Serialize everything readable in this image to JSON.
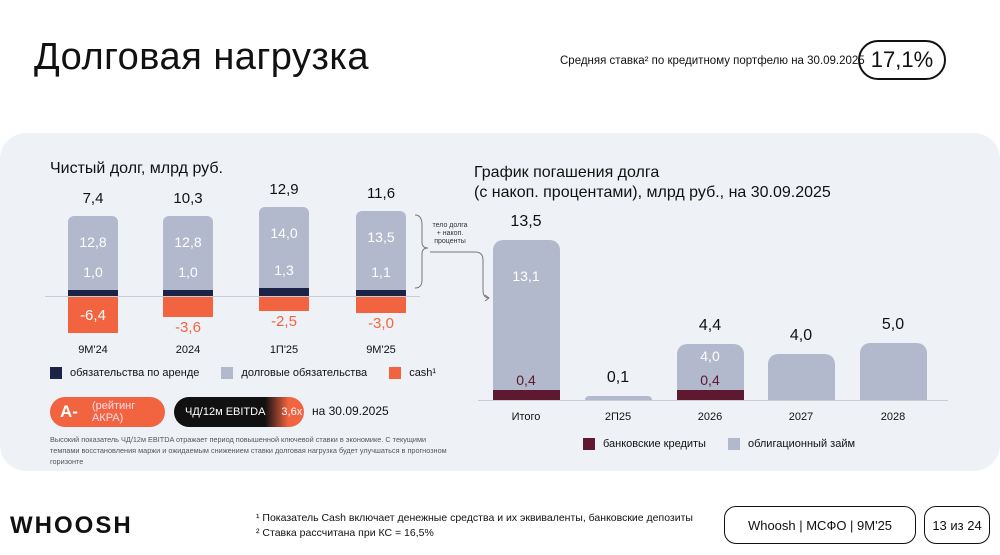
{
  "header": {
    "title": "Долговая нагрузка",
    "rate_label": "Средняя ставка² по кредитному портфелю на 30.09.2025",
    "rate_value": "17,1%"
  },
  "colors": {
    "lease": "#1b2347",
    "debt": "#b3b9cc",
    "cash": "#f26440",
    "bank": "#5e1830",
    "bonds": "#b3b9cc"
  },
  "left_chart": {
    "title": "Чистый долг, млрд руб.",
    "type": "bar",
    "categories": [
      "9М'24",
      "2024",
      "1П'25",
      "9М'25"
    ],
    "net_debt": [
      "7,4",
      "10,3",
      "12,9",
      "11,6"
    ],
    "debt": [
      12.8,
      12.8,
      14.0,
      13.5
    ],
    "debt_labels": [
      "12,8",
      "12,8",
      "14,0",
      "13,5"
    ],
    "lease": [
      1.0,
      1.0,
      1.3,
      1.1
    ],
    "lease_labels": [
      "1,0",
      "1,0",
      "1,3",
      "1,1"
    ],
    "cash": [
      -6.4,
      -3.6,
      -2.5,
      -3.0
    ],
    "cash_labels": [
      "-6,4",
      "-3,6",
      "-2,5",
      "-3,0"
    ],
    "legend": [
      "обязательства по аренде",
      "долговые обязательства",
      "cash¹"
    ],
    "annotation": "тело долга + накоп. проценты"
  },
  "badges": {
    "rating": "A-",
    "rating_label": "(рейтинг АКРА)",
    "ratio_label": "ЧД/12м EBITDA",
    "ratio_value": "3,6x",
    "date": "на 30.09.2025"
  },
  "note": "Высокий показатель ЧД/12м EBITDA отражает период повышенной ключевой ставки в экономике. С текущими темпами восстановления маржи и ожидаемым снижением ставки долговая нагрузка будет улучшаться в прогнозном горизонте",
  "right_chart": {
    "title_line1": "График погашения долга",
    "title_line2": "(с накоп. процентами), млрд руб., на 30.09.2025",
    "type": "bar",
    "categories": [
      "Итого",
      "2П25",
      "2026",
      "2027",
      "2028"
    ],
    "totals": [
      "13,5",
      "0,1",
      "4,4",
      "4,0",
      "5,0"
    ],
    "bank": [
      0.4,
      0.1,
      0.4,
      0,
      0
    ],
    "bank_labels": [
      "0,4",
      "",
      "0,4",
      "",
      ""
    ],
    "bonds": [
      13.1,
      0,
      4.0,
      4.0,
      5.0
    ],
    "bonds_labels": [
      "13,1",
      "",
      "4,0",
      "",
      ""
    ],
    "legend": [
      "банковские кредиты",
      "облигационный займ"
    ]
  },
  "footer": {
    "logo": "WHOOSH",
    "note1": "¹ Показатель Cash включает денежные средства и их эквиваленты, банковские депозиты",
    "note2": "² Ставка рассчитана при КС = 16,5%",
    "report": "Whoosh | МСФО | 9М'25",
    "page": "13 из 24"
  }
}
